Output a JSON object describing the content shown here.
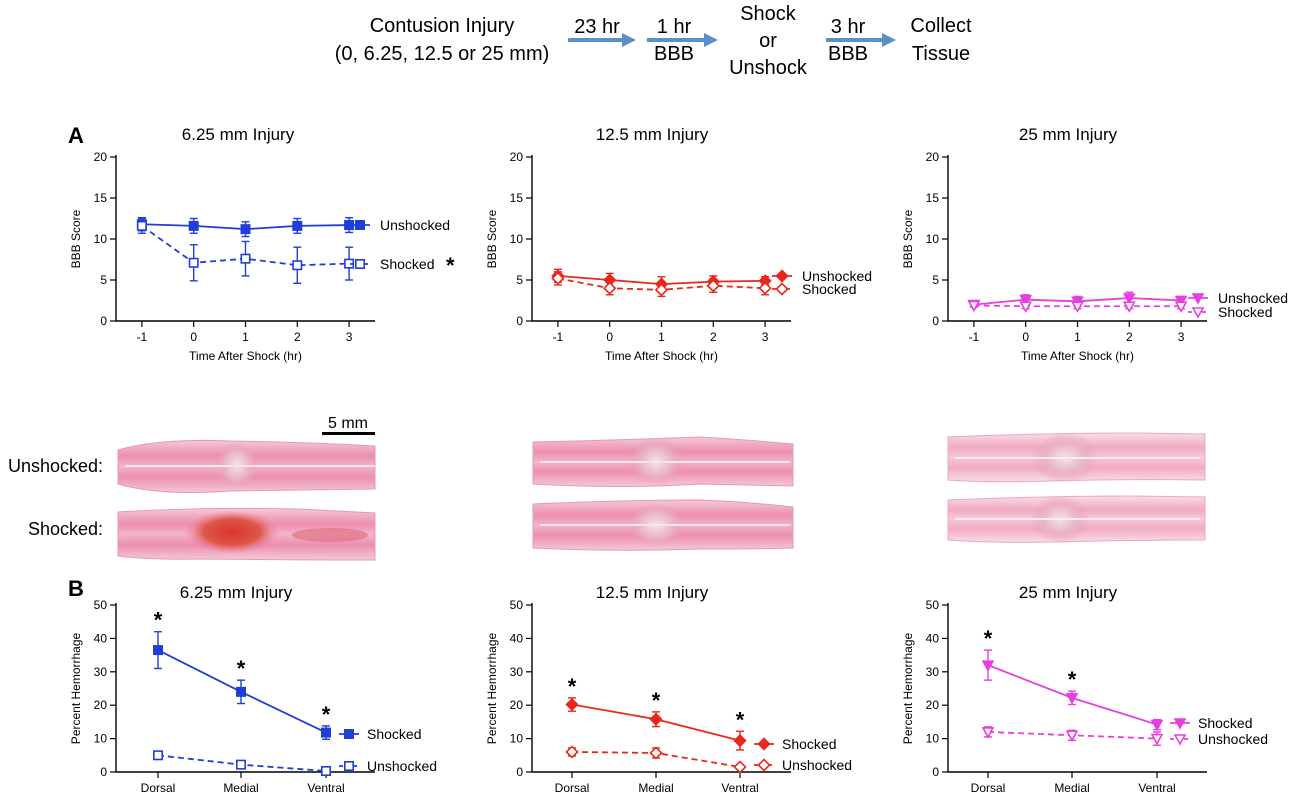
{
  "workflow": {
    "step1_line1": "Contusion Injury",
    "step1_line2": "(0, 6.25, 12.5 or 25 mm)",
    "arrow1_top": "23 hr",
    "arrow2_top": "1 hr",
    "arrow2_bottom": "BBB",
    "step2_line1": "Shock",
    "step2_line2": "or",
    "step2_line3": "Unshock",
    "arrow3_top": "3 hr",
    "arrow3_bottom": "BBB",
    "step3_line1": "Collect",
    "step3_line2": "Tissue",
    "arrow_color": "#5b8fc7"
  },
  "panel_labels": {
    "a": "A",
    "b": "B"
  },
  "histology": {
    "scale_bar_label": "5 mm",
    "row_unshocked": "Unshocked:",
    "row_shocked": "Shocked:"
  },
  "chart_data": [
    {
      "id": "a1",
      "panel": "A",
      "type": "line",
      "title": "6.25 mm Injury",
      "xlabel": "Time After Shock (hr)",
      "ylabel": "BBB Score",
      "x": [
        -1,
        0,
        1,
        2,
        3
      ],
      "xlim": [
        -1.5,
        3.5
      ],
      "ylim": [
        0,
        20
      ],
      "yticks": [
        0,
        5,
        10,
        15,
        20
      ],
      "color": "#1f3fd6",
      "series": [
        {
          "name": "Unshocked",
          "marker": "square",
          "filled": true,
          "dashed": false,
          "values": [
            11.8,
            11.6,
            11.2,
            11.6,
            11.7
          ],
          "errors": [
            0.8,
            0.9,
            0.9,
            0.9,
            0.9
          ]
        },
        {
          "name": "Shocked",
          "marker": "square",
          "filled": false,
          "dashed": true,
          "significant": true,
          "values": [
            11.6,
            7.1,
            7.6,
            6.8,
            7.0
          ],
          "errors": [
            0.9,
            2.2,
            2.1,
            2.2,
            2.0
          ]
        }
      ]
    },
    {
      "id": "a2",
      "panel": "A",
      "type": "line",
      "title": "12.5 mm Injury",
      "xlabel": "Time After Shock (hr)",
      "ylabel": "BBB Score",
      "x": [
        -1,
        0,
        1,
        2,
        3
      ],
      "xlim": [
        -1.5,
        3.5
      ],
      "ylim": [
        0,
        20
      ],
      "yticks": [
        0,
        5,
        10,
        15,
        20
      ],
      "color": "#e8281c",
      "series": [
        {
          "name": "Unshocked",
          "marker": "diamond",
          "filled": true,
          "dashed": false,
          "values": [
            5.5,
            5.0,
            4.5,
            4.8,
            4.9
          ],
          "errors": [
            0.8,
            0.8,
            0.9,
            0.7,
            0.5
          ]
        },
        {
          "name": "Shocked",
          "marker": "diamond",
          "filled": false,
          "dashed": true,
          "values": [
            5.2,
            4.0,
            3.8,
            4.3,
            4.0
          ],
          "errors": [
            0.8,
            0.8,
            0.8,
            0.8,
            0.8
          ]
        }
      ]
    },
    {
      "id": "a3",
      "panel": "A",
      "type": "line",
      "title": "25 mm Injury",
      "xlabel": "Time After Shock (hr)",
      "ylabel": "BBB Score",
      "x": [
        -1,
        0,
        1,
        2,
        3
      ],
      "xlim": [
        -1.5,
        3.5
      ],
      "ylim": [
        0,
        20
      ],
      "yticks": [
        0,
        5,
        10,
        15,
        20
      ],
      "color": "#e83ee0",
      "series": [
        {
          "name": "Unshocked",
          "marker": "triangle-down",
          "filled": true,
          "dashed": false,
          "values": [
            2.0,
            2.6,
            2.4,
            2.8,
            2.5
          ],
          "errors": [
            0.3,
            0.6,
            0.6,
            0.7,
            0.5
          ]
        },
        {
          "name": "Shocked",
          "marker": "triangle-down",
          "filled": false,
          "dashed": true,
          "values": [
            1.9,
            1.8,
            1.8,
            1.8,
            1.8
          ],
          "errors": [
            0.2,
            0.3,
            0.3,
            0.3,
            0.3
          ]
        }
      ]
    },
    {
      "id": "b1",
      "panel": "B",
      "type": "line",
      "title": "6.25 mm Injury",
      "xlabel": "",
      "ylabel": "Percent Hemorrhage",
      "categories": [
        "Dorsal",
        "Medial",
        "Ventral"
      ],
      "ylim": [
        0,
        50
      ],
      "yticks": [
        0,
        10,
        20,
        30,
        40,
        50
      ],
      "color": "#1f3fd6",
      "series": [
        {
          "name": "Shocked",
          "marker": "square",
          "filled": true,
          "dashed": false,
          "values": [
            36.5,
            24.0,
            11.8
          ],
          "errors": [
            5.5,
            3.5,
            2.0
          ],
          "stars": [
            true,
            true,
            true
          ]
        },
        {
          "name": "Unshocked",
          "marker": "square",
          "filled": false,
          "dashed": true,
          "values": [
            5.0,
            2.2,
            0.3
          ],
          "errors": [
            0,
            0,
            0
          ]
        }
      ]
    },
    {
      "id": "b2",
      "panel": "B",
      "type": "line",
      "title": "12.5 mm Injury",
      "xlabel": "",
      "ylabel": "Percent Hemorrhage",
      "categories": [
        "Dorsal",
        "Medial",
        "Ventral"
      ],
      "ylim": [
        0,
        50
      ],
      "yticks": [
        0,
        10,
        20,
        30,
        40,
        50
      ],
      "color": "#e8281c",
      "series": [
        {
          "name": "Shocked",
          "marker": "diamond",
          "filled": true,
          "dashed": false,
          "values": [
            20.2,
            15.8,
            9.4
          ],
          "errors": [
            2.0,
            2.2,
            2.8
          ],
          "stars": [
            true,
            true,
            true
          ]
        },
        {
          "name": "Unshocked",
          "marker": "diamond",
          "filled": false,
          "dashed": true,
          "values": [
            6.0,
            5.7,
            1.5
          ],
          "errors": [
            1.2,
            1.5,
            0.4
          ]
        }
      ]
    },
    {
      "id": "b3",
      "panel": "B",
      "type": "line",
      "title": "25 mm Injury",
      "xlabel": "",
      "ylabel": "Percent Hemorrhage",
      "categories": [
        "Dorsal",
        "Medial",
        "Ventral"
      ],
      "ylim": [
        0,
        50
      ],
      "yticks": [
        0,
        10,
        20,
        30,
        40,
        50
      ],
      "color": "#e83ee0",
      "series": [
        {
          "name": "Shocked",
          "marker": "triangle-down",
          "filled": true,
          "dashed": false,
          "values": [
            32.0,
            22.2,
            14.2
          ],
          "errors": [
            4.5,
            2.0,
            1.5
          ],
          "stars": [
            true,
            true,
            false
          ]
        },
        {
          "name": "Unshocked",
          "marker": "triangle-down",
          "filled": false,
          "dashed": true,
          "values": [
            12.0,
            11.0,
            10.0
          ],
          "errors": [
            1.5,
            1.5,
            2.0
          ]
        }
      ]
    }
  ]
}
